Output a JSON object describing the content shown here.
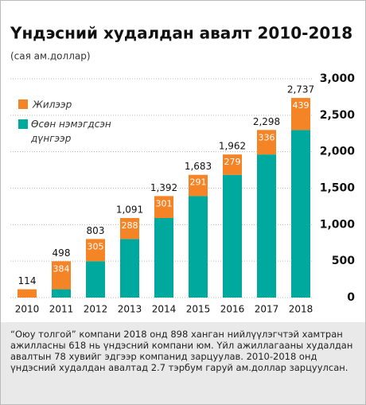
{
  "chart_data": {
    "type": "stacked_bar",
    "title": "Үндэсний худалдан авалт 2010-2018",
    "subtitle": "(сая ам.доллар)",
    "categories": [
      "2010",
      "2011",
      "2012",
      "2013",
      "2014",
      "2015",
      "2016",
      "2017",
      "2018"
    ],
    "series": [
      {
        "name": "Өсөн нэмэгдсэн дүнгээр",
        "color": "#00a99d",
        "values": [
          0,
          114,
          498,
          803,
          1091,
          1392,
          1683,
          1962,
          2298
        ]
      },
      {
        "name": "Жилээр",
        "color": "#f58426",
        "values": [
          114,
          384,
          305,
          288,
          301,
          291,
          279,
          336,
          439
        ],
        "value_labels": [
          null,
          "384",
          "305",
          "288",
          "301",
          "291",
          "279",
          "336",
          "439"
        ]
      }
    ],
    "totals": [
      114,
      498,
      803,
      1091,
      1392,
      1683,
      1962,
      2298,
      2737
    ],
    "total_labels": [
      "114",
      "498",
      "803",
      "1,091",
      "1,392",
      "1,683",
      "1,962",
      "2,298",
      "2,737"
    ],
    "ylim": [
      0,
      3000
    ],
    "yticks": [
      0,
      500,
      {
        "value": 1000,
        "label": "1,000"
      },
      {
        "value": 1500,
        "label": "1,500"
      },
      {
        "value": 2000,
        "label": "2,000"
      },
      {
        "value": 2500,
        "label": "2,500"
      },
      {
        "value": 3000,
        "label": "3,000"
      }
    ],
    "grid": true,
    "note": "“Оюу толгой” компани 2018 онд 898 ханган нийлүүлэгчтэй хамтран ажилласны 618 нь үндэсний компани юм. Үйл ажиллагааны худалдан авалтын 78 хувийг эдгээр компанид зарцуулав. 2010-2018 онд үндэсний худалдан авалтад 2.7 тэрбум гаруй ам.доллар зарцуулсан."
  }
}
